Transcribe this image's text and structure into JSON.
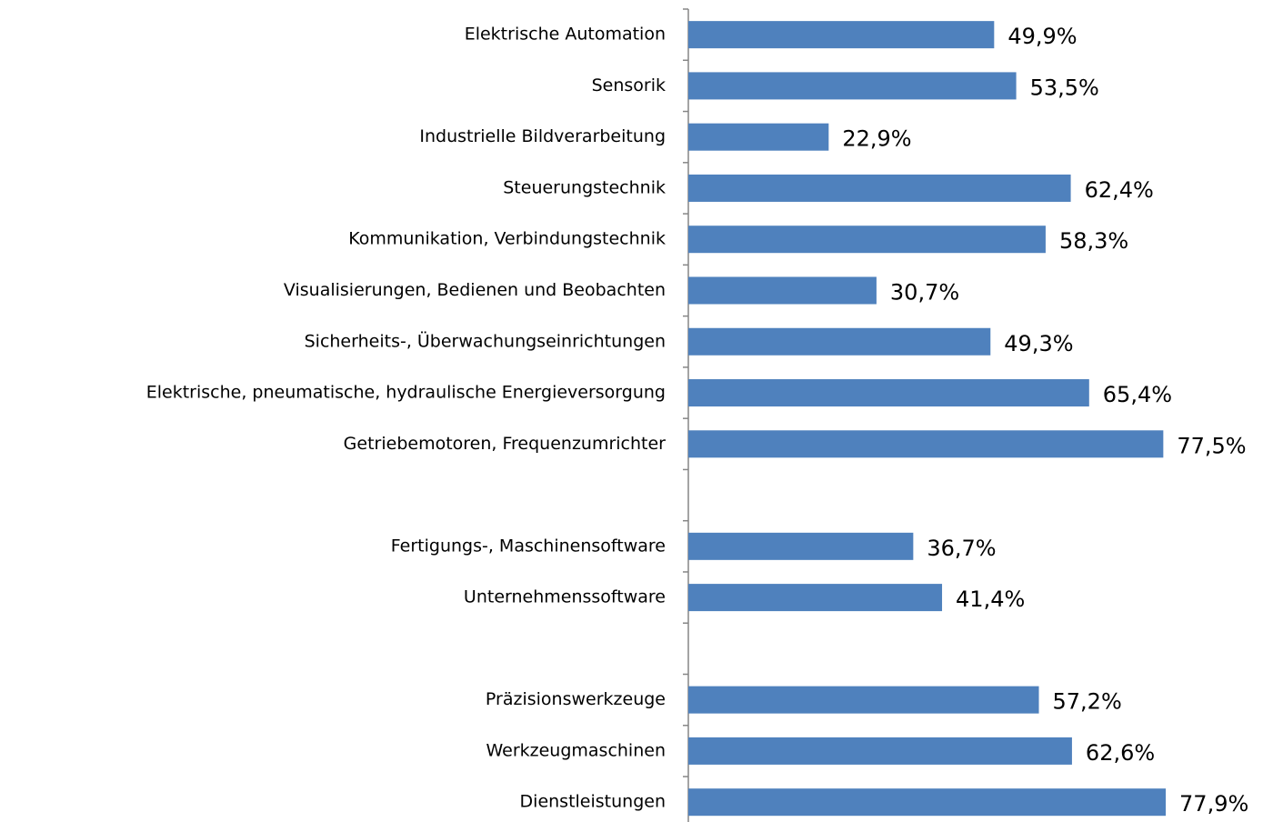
{
  "chart_data": {
    "type": "bar",
    "orientation": "horizontal",
    "color": "#4f81bd",
    "categories": [
      "Elektrische Automation",
      "Sensorik",
      "Industrielle Bildverarbeitung",
      "Steuerungstechnik",
      "Kommunikation, Verbindungstechnik",
      "Visualisierungen, Bedienen und Beobachten",
      "Sicherheits-, Überwachungseinrichtungen",
      "Elektrische, pneumatische, hydraulische Energieversorgung",
      "Getriebemotoren, Frequenzumrichter",
      null,
      "Fertigungs-, Maschinensoftware",
      "Unternehmenssoftware",
      null,
      "Präzisionswerkzeuge",
      "Werkzeugmaschinen",
      "Dienstleistungen"
    ],
    "values": [
      49.9,
      53.5,
      22.9,
      62.4,
      58.3,
      30.7,
      49.3,
      65.4,
      77.5,
      null,
      36.7,
      41.4,
      null,
      57.2,
      62.6,
      77.9
    ],
    "value_labels": [
      "49,9%",
      "53,5%",
      "22,9%",
      "62,4%",
      "58,3%",
      "30,7%",
      "49,3%",
      "65,4%",
      "77,5%",
      null,
      "36,7%",
      "41,4%",
      null,
      "57,2%",
      "62,6%",
      "77,9%"
    ],
    "xlim": [
      0,
      100
    ]
  }
}
